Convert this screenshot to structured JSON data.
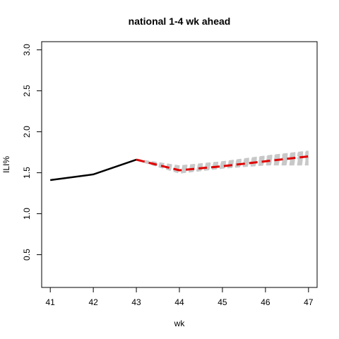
{
  "chart_data": {
    "type": "line",
    "title": "national 1-4 wk ahead",
    "xlabel": "wk",
    "ylabel": "ILI%",
    "xlim": [
      40.8,
      47.2
    ],
    "ylim": [
      0.1,
      3.1
    ],
    "x_ticks": [
      41,
      42,
      43,
      44,
      45,
      46,
      47
    ],
    "x_tick_labels": [
      "41",
      "42",
      "43",
      "44",
      "45",
      "46",
      "47"
    ],
    "y_ticks": [
      0.5,
      1.0,
      1.5,
      2.0,
      2.5,
      3.0
    ],
    "y_tick_labels": [
      "0.5",
      "1.0",
      "1.5",
      "2.0",
      "2.5",
      "3.0"
    ],
    "grid": false,
    "series": [
      {
        "role": "observed",
        "color": "#000000",
        "style": "solid",
        "x": [
          41,
          42,
          43
        ],
        "values": [
          1.41,
          1.48,
          1.66
        ]
      },
      {
        "role": "forecast-mean",
        "color": "#e00000",
        "style": "dashed",
        "x": [
          43,
          44,
          45,
          46,
          47
        ],
        "values": [
          1.66,
          1.53,
          1.58,
          1.64,
          1.7
        ]
      }
    ],
    "ensemble": {
      "color": "#c8c8c8",
      "style": "dashed",
      "x": [
        43,
        44,
        45,
        46,
        47
      ],
      "members": [
        [
          1.66,
          1.5,
          1.56,
          1.6,
          1.6
        ],
        [
          1.66,
          1.51,
          1.57,
          1.61,
          1.62
        ],
        [
          1.66,
          1.52,
          1.57,
          1.62,
          1.64
        ],
        [
          1.66,
          1.53,
          1.58,
          1.63,
          1.66
        ],
        [
          1.66,
          1.54,
          1.59,
          1.65,
          1.68
        ],
        [
          1.66,
          1.55,
          1.6,
          1.66,
          1.7
        ],
        [
          1.66,
          1.56,
          1.61,
          1.67,
          1.72
        ],
        [
          1.66,
          1.57,
          1.62,
          1.68,
          1.74
        ],
        [
          1.66,
          1.58,
          1.63,
          1.7,
          1.76
        ],
        [
          1.66,
          1.53,
          1.59,
          1.66,
          1.73
        ],
        [
          1.66,
          1.52,
          1.58,
          1.64,
          1.69
        ],
        [
          1.66,
          1.55,
          1.61,
          1.69,
          1.75
        ]
      ]
    }
  }
}
